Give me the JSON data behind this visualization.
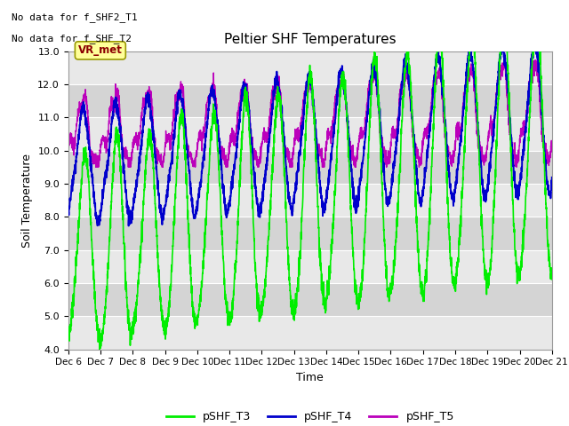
{
  "title": "Peltier SHF Temperatures",
  "xlabel": "Time",
  "ylabel": "Soil Temperature",
  "ylim": [
    4.0,
    13.0
  ],
  "yticks": [
    4.0,
    5.0,
    6.0,
    7.0,
    8.0,
    9.0,
    10.0,
    11.0,
    12.0,
    13.0
  ],
  "xlim_days": [
    0,
    15
  ],
  "xtick_labels": [
    "Dec 6",
    "Dec 7",
    "Dec 8",
    "Dec 9",
    "Dec 10",
    "Dec 11",
    "Dec 12",
    "Dec 13",
    "Dec 14",
    "Dec 15",
    "Dec 16",
    "Dec 17",
    "Dec 18",
    "Dec 19",
    "Dec 20",
    "Dec 21"
  ],
  "no_data_text_1": "No data for f_SHF2_T1",
  "no_data_text_2": "No data for f_SHF_T2",
  "vr_label": "VR_met",
  "color_T3": "#00EE00",
  "color_T4": "#0000CC",
  "color_T5": "#BB00BB",
  "legend_labels": [
    "pSHF_T3",
    "pSHF_T4",
    "pSHF_T5"
  ],
  "background_color": "#FFFFFF",
  "plot_bg_color": "#E0E0E0",
  "band_light": "#E8E8E8",
  "band_dark": "#D4D4D4"
}
